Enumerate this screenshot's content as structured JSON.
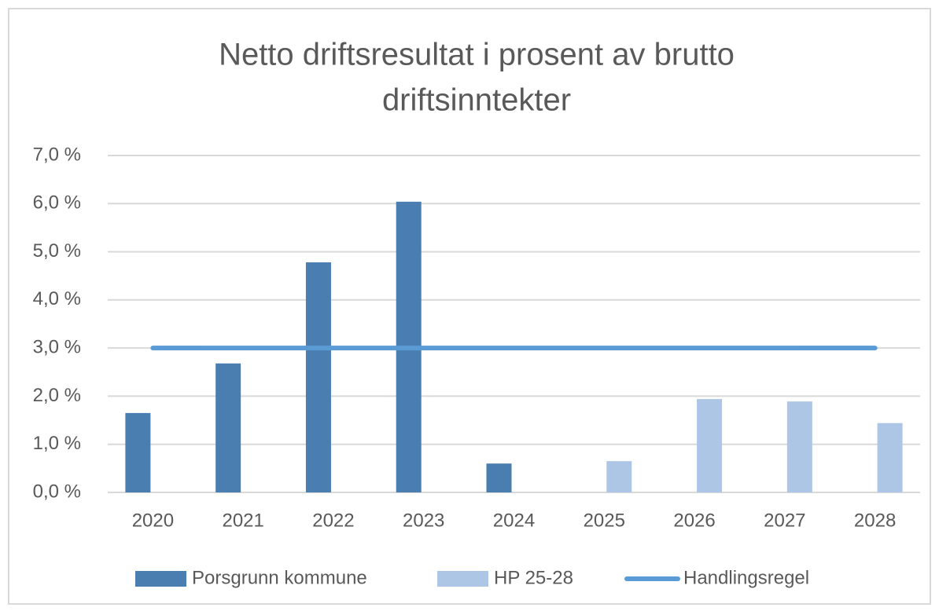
{
  "chart_data": {
    "type": "bar",
    "title": [
      "Netto driftsresultat i prosent av brutto",
      "driftsinntekter"
    ],
    "categories": [
      "2020",
      "2021",
      "2022",
      "2023",
      "2024",
      "2025",
      "2026",
      "2027",
      "2028"
    ],
    "series": [
      {
        "name": "Porsgrunn kommune",
        "type": "bar",
        "color": "#4a7eb0",
        "values": [
          1.65,
          2.68,
          4.78,
          6.04,
          0.6,
          null,
          null,
          null,
          null
        ]
      },
      {
        "name": "HP 25-28",
        "type": "bar",
        "color": "#aec6e6",
        "values": [
          null,
          null,
          null,
          null,
          null,
          0.65,
          1.94,
          1.89,
          1.44
        ]
      },
      {
        "name": "Handlingsregel",
        "type": "line",
        "color": "#5b9bd5",
        "values": [
          3,
          3,
          3,
          3,
          3,
          3,
          3,
          3,
          3
        ]
      }
    ],
    "ylim": [
      0,
      7
    ],
    "yticks": [
      {
        "value": 0,
        "label": "0,0 %"
      },
      {
        "value": 1,
        "label": "1,0 %"
      },
      {
        "value": 2,
        "label": "2,0 %"
      },
      {
        "value": 3,
        "label": "3,0 %"
      },
      {
        "value": 4,
        "label": "4,0 %"
      },
      {
        "value": 5,
        "label": "5,0 %"
      },
      {
        "value": 6,
        "label": "6,0 %"
      },
      {
        "value": 7,
        "label": "7,0 %"
      }
    ],
    "grid": true,
    "legend": "bottom"
  }
}
